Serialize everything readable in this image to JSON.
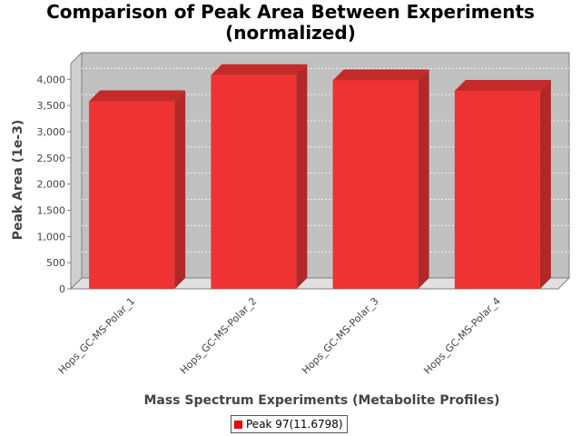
{
  "chart_data": {
    "type": "bar",
    "title_line1": "Comparison of Peak Area Between Experiments",
    "title_line2": "(normalized)",
    "xlabel": "Mass Spectrum Experiments (Metabolite Profiles)",
    "ylabel": "Peak Area (1e-3)",
    "categories": [
      "Hops_GC-MS-Polar_1",
      "Hops_GC-MS-Polar_2",
      "Hops_GC-MS-Polar_3",
      "Hops_GC-MS-Polar_4"
    ],
    "series": [
      {
        "name": "Peak 97(11.6798)",
        "values": [
          3580,
          4080,
          3980,
          3780
        ]
      }
    ],
    "ylim": [
      0,
      4300
    ],
    "yticks": [
      0,
      500,
      1000,
      1500,
      2000,
      2500,
      3000,
      3500,
      4000
    ],
    "ytick_labels": [
      "0",
      "500",
      "1,000",
      "1,500",
      "2,000",
      "2,500",
      "3,000",
      "3,500",
      "4,000"
    ],
    "grid": true,
    "legend_position": "bottom-center",
    "colors": {
      "bar_front": "#ef3333",
      "bar_top": "#c42a2a",
      "bar_side": "#b02828",
      "plot_bg": "#c0c0c0",
      "floor": "#e0e0e0"
    }
  }
}
